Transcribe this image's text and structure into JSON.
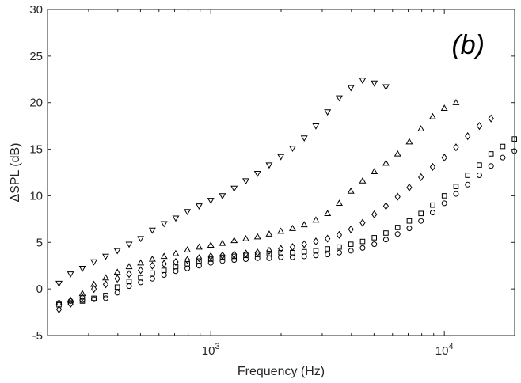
{
  "chart_data": {
    "type": "scatter",
    "title": "",
    "panel_label": "(b)",
    "xlabel": "Frequency (Hz)",
    "ylabel": "ΔSPL (dB)",
    "x_scale": "log",
    "xlim": [
      200,
      20000
    ],
    "ylim": [
      -5,
      30
    ],
    "yticks": [
      -5,
      0,
      5,
      10,
      15,
      20,
      25,
      30
    ],
    "xticks": [
      {
        "value": 1000,
        "base": "10",
        "exp": "3"
      },
      {
        "value": 10000,
        "base": "10",
        "exp": "4"
      }
    ],
    "grid": false,
    "legend": "none",
    "marker_color": "#000000",
    "x": [
      224,
      251,
      282,
      316,
      355,
      398,
      447,
      501,
      562,
      631,
      708,
      794,
      891,
      1000,
      1122,
      1259,
      1413,
      1585,
      1778,
      1995,
      2239,
      2512,
      2818,
      3162,
      3548,
      3981,
      4467,
      5012,
      5623,
      6310,
      7079,
      7943,
      8913,
      10000,
      11220,
      12589,
      14125,
      15849,
      17783,
      19953
    ],
    "series": [
      {
        "marker": "triangle-down",
        "values": [
          0.6,
          1.6,
          2.2,
          2.9,
          3.5,
          4.1,
          4.8,
          5.4,
          6.3,
          7.0,
          7.6,
          8.3,
          8.9,
          9.5,
          10.0,
          10.8,
          11.6,
          12.4,
          13.3,
          14.2,
          15.1,
          16.2,
          17.5,
          19.0,
          20.5,
          21.6,
          22.4,
          22.1,
          21.7,
          null,
          null,
          null,
          null,
          null,
          null,
          null,
          null,
          null,
          null,
          null
        ]
      },
      {
        "marker": "triangle-up",
        "values": [
          -1.5,
          -1.2,
          -0.5,
          0.5,
          1.2,
          1.8,
          2.4,
          2.8,
          3.2,
          3.5,
          3.8,
          4.2,
          4.5,
          4.7,
          4.9,
          5.2,
          5.4,
          5.6,
          5.9,
          6.2,
          6.5,
          6.9,
          7.4,
          8.1,
          9.2,
          10.5,
          11.6,
          12.6,
          13.5,
          14.5,
          15.8,
          17.2,
          18.5,
          19.4,
          20.0,
          null,
          null,
          null,
          null,
          null
        ]
      },
      {
        "marker": "diamond",
        "values": [
          -2.2,
          -1.6,
          -0.9,
          0.0,
          0.5,
          1.1,
          1.6,
          2.0,
          2.5,
          2.7,
          2.9,
          3.1,
          3.3,
          3.5,
          3.6,
          3.7,
          3.8,
          3.9,
          4.1,
          4.3,
          4.5,
          4.8,
          5.1,
          5.4,
          5.8,
          6.4,
          7.1,
          8.0,
          8.9,
          9.9,
          10.9,
          12.0,
          13.1,
          14.1,
          15.2,
          16.4,
          17.5,
          18.3,
          null,
          null
        ]
      },
      {
        "marker": "square",
        "values": [
          -1.7,
          -1.5,
          -1.3,
          -1.0,
          -0.7,
          0.2,
          0.8,
          1.2,
          1.7,
          2.0,
          2.4,
          2.7,
          3.0,
          3.2,
          3.4,
          3.5,
          3.6,
          3.7,
          3.8,
          3.9,
          3.9,
          4.0,
          4.1,
          4.3,
          4.5,
          4.8,
          5.1,
          5.5,
          6.0,
          6.6,
          7.3,
          8.1,
          9.0,
          10.0,
          11.0,
          12.2,
          13.3,
          14.5,
          15.3,
          16.1
        ]
      },
      {
        "marker": "circle",
        "values": [
          -1.5,
          -1.3,
          -1.2,
          -1.1,
          -1.0,
          -0.4,
          0.3,
          0.7,
          1.1,
          1.5,
          1.9,
          2.2,
          2.5,
          2.8,
          3.0,
          3.1,
          3.2,
          3.3,
          3.3,
          3.4,
          3.4,
          3.5,
          3.6,
          3.7,
          3.9,
          4.1,
          4.4,
          4.8,
          5.3,
          5.9,
          6.5,
          7.3,
          8.2,
          9.2,
          10.2,
          11.2,
          12.2,
          13.2,
          14.1,
          14.8
        ]
      }
    ]
  }
}
